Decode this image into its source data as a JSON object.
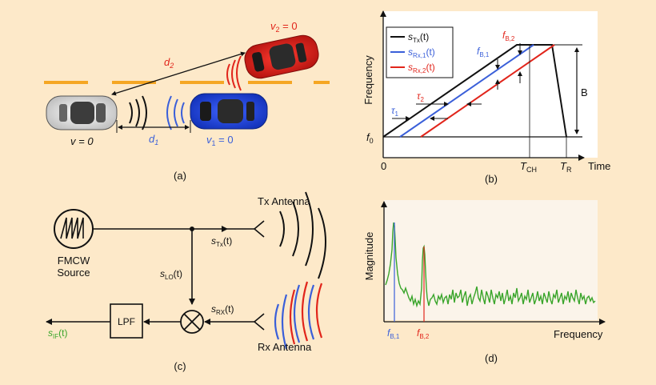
{
  "colors": {
    "background": "#fde9c9",
    "panel_d_bg": "#fbf4ea",
    "black": "#111111",
    "blue": "#3a5fd9",
    "red": "#e1251b",
    "green": "#3aa52b",
    "lane_yellow": "#f5a623"
  },
  "panel_a": {
    "caption": "(a)",
    "d2": "d",
    "d2_sub": "2",
    "d1": "d",
    "d1_sub": "1",
    "ego_v": "v = 0",
    "car1_v": "v",
    "car1_v_sub": "1",
    "car1_v_val": " = 0",
    "car2_v": "v",
    "car2_v_sub": "2",
    "car2_v_val": " = 0"
  },
  "panel_b": {
    "caption": "(b)",
    "ylabel": "Frequency",
    "xlabel": "Time",
    "origin": "0",
    "f0": "f",
    "f0_sub": "0",
    "tch": "T",
    "tch_sub": "CH",
    "tr": "T",
    "tr_sub": "R",
    "B": "B",
    "fb1": "f",
    "fb1_sub": "B,1",
    "fb2": "f",
    "fb2_sub": "B,2",
    "tau1": "τ",
    "tau1_sub": "1",
    "tau2": "τ",
    "tau2_sub": "2",
    "legend": [
      {
        "s": "s",
        "sub": "Tx",
        "arg": "(t)",
        "color": "#111111"
      },
      {
        "s": "s",
        "sub": "Rx,1",
        "arg": "(t)",
        "color": "#3a5fd9"
      },
      {
        "s": "s",
        "sub": "Rx,2",
        "arg": "(t)",
        "color": "#e1251b"
      }
    ]
  },
  "panel_c": {
    "caption": "(c)",
    "source_l1": "FMCW",
    "source_l2": "Source",
    "tx_antenna": "Tx Antenna",
    "rx_antenna": "Rx Antenna",
    "lpf": "LPF",
    "stx": "s",
    "stx_sub": "Tx",
    "stx_arg": "(t)",
    "slo": "s",
    "slo_sub": "LO",
    "slo_arg": "(t)",
    "srx": "s",
    "srx_sub": "RX",
    "srx_arg": "(t)",
    "sif": "s",
    "sif_sub": "IF",
    "sif_arg": "(t)"
  },
  "panel_d": {
    "caption": "(d)",
    "ylabel": "Magnitude",
    "xlabel": "Frequency",
    "fb1": "f",
    "fb1_sub": "B,1",
    "fb2": "f",
    "fb2_sub": "B,2"
  }
}
